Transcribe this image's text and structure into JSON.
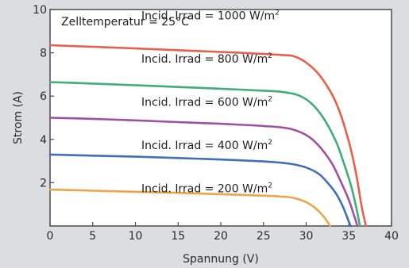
{
  "chart_data": {
    "type": "line",
    "title": "",
    "annotation": "Zelltemperatur = 25°C",
    "xlabel": "Spannung (V)",
    "ylabel": "Strom (A)",
    "xlim": [
      0,
      40
    ],
    "ylim": [
      0,
      10
    ],
    "x_ticks": [
      "0",
      "5",
      "10",
      "15",
      "20",
      "25",
      "30",
      "35",
      "40"
    ],
    "y_ticks": [
      "2",
      "4",
      "6",
      "8",
      "10"
    ],
    "grid": false,
    "series": [
      {
        "name": "Incid. Irrad = 1000 W/m²",
        "color": "#e8604a",
        "x": [
          0,
          5,
          10,
          15,
          20,
          25,
          27,
          28.5,
          30,
          31.5,
          33,
          34,
          35,
          35.5,
          36,
          36.5,
          37
        ],
        "y": [
          8.35,
          8.28,
          8.2,
          8.12,
          8.04,
          7.95,
          7.9,
          7.85,
          7.55,
          7.0,
          6.1,
          5.2,
          3.9,
          3.1,
          2.1,
          0.9,
          0
        ]
      },
      {
        "name": "Incid. Irrad = 800 W/m²",
        "color": "#3fae78",
        "x": [
          0,
          5,
          10,
          15,
          20,
          25,
          27,
          29,
          30.5,
          32,
          33.5,
          34.5,
          35.3,
          35.9,
          36.3
        ],
        "y": [
          6.65,
          6.58,
          6.5,
          6.42,
          6.34,
          6.25,
          6.2,
          6.05,
          5.7,
          5.0,
          3.9,
          2.8,
          1.8,
          0.8,
          0
        ]
      },
      {
        "name": "Incid. Irrad = 600 W/m²",
        "color": "#a24fa3",
        "x": [
          0,
          5,
          10,
          15,
          20,
          25,
          28,
          30,
          31.5,
          33,
          34,
          35,
          35.6,
          36
        ],
        "y": [
          5.0,
          4.95,
          4.88,
          4.8,
          4.72,
          4.62,
          4.5,
          4.2,
          3.7,
          2.9,
          2.1,
          1.2,
          0.5,
          0
        ]
      },
      {
        "name": "Incid. Irrad = 400 W/m²",
        "color": "#3f70b8",
        "x": [
          0,
          5,
          10,
          15,
          20,
          25,
          28,
          30,
          31.5,
          32.5,
          33.5,
          34.3,
          34.9,
          35.2
        ],
        "y": [
          3.3,
          3.25,
          3.2,
          3.14,
          3.07,
          2.98,
          2.88,
          2.7,
          2.4,
          2.0,
          1.5,
          0.9,
          0.3,
          0
        ]
      },
      {
        "name": "Incid. Irrad = 200 W/m²",
        "color": "#f0a44a",
        "x": [
          0,
          5,
          10,
          15,
          20,
          25,
          27,
          28.5,
          30,
          31,
          31.8,
          32.4,
          32.8
        ],
        "y": [
          1.68,
          1.63,
          1.58,
          1.53,
          1.47,
          1.4,
          1.36,
          1.3,
          1.1,
          0.85,
          0.55,
          0.25,
          0
        ]
      }
    ],
    "label_parts": {
      "prefix": "Incid. Irrad = ",
      "unit": "W/m",
      "sup": "2",
      "values": [
        "1000",
        "800",
        "600",
        "400",
        "200"
      ]
    }
  }
}
